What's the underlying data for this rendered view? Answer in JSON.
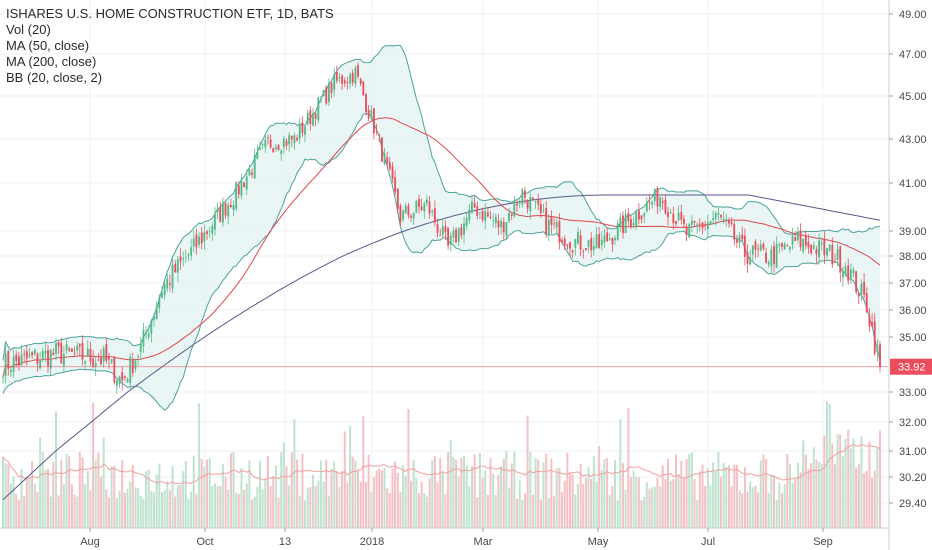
{
  "legend": {
    "title": "ISHARES U.S. HOME CONSTRUCTION ETF, 1D, BATS",
    "vol": "Vol (20)",
    "ma50": "MA (50, close)",
    "ma200": "MA (200, close)",
    "bb": "BB (20, close, 2)"
  },
  "price_label": "33.92",
  "colors": {
    "up": "#53b987",
    "down": "#eb4d5c",
    "ma50": "#e0474c",
    "ma200": "#5a5a8a",
    "bb": "#4ca39a",
    "bb_fill": "#e3f3f1",
    "vol_up": "#bfe3cf",
    "vol_down": "#f6c1c5",
    "vol_ma": "#f0a0a0"
  },
  "chart_data": {
    "type": "candlestick",
    "y_ticks": [
      "49.00",
      "47.00",
      "45.00",
      "43.00",
      "41.00",
      "39.00",
      "38.00",
      "37.00",
      "36.00",
      "35.00",
      "33.00",
      "32.00",
      "31.00",
      "30.20",
      "29.40"
    ],
    "x_ticks": [
      "Aug",
      "Oct",
      "13",
      "2018",
      "Mar",
      "May",
      "Jul",
      "Sep"
    ],
    "last_close": 33.92,
    "close_keypoints": [
      {
        "t": 0,
        "v": 34.0
      },
      {
        "t": 20,
        "v": 34.4
      },
      {
        "t": 38,
        "v": 34.2
      },
      {
        "t": 45,
        "v": 33.4
      },
      {
        "t": 52,
        "v": 34.6
      },
      {
        "t": 60,
        "v": 36.8
      },
      {
        "t": 72,
        "v": 38.3
      },
      {
        "t": 88,
        "v": 40.6
      },
      {
        "t": 100,
        "v": 42.8
      },
      {
        "t": 110,
        "v": 43.0
      },
      {
        "t": 125,
        "v": 45.6
      },
      {
        "t": 133,
        "v": 46.1
      },
      {
        "t": 140,
        "v": 43.6
      },
      {
        "t": 150,
        "v": 39.6
      },
      {
        "t": 160,
        "v": 40.1
      },
      {
        "t": 168,
        "v": 38.3
      },
      {
        "t": 178,
        "v": 40.0
      },
      {
        "t": 188,
        "v": 39.2
      },
      {
        "t": 196,
        "v": 40.6
      },
      {
        "t": 205,
        "v": 39.3
      },
      {
        "t": 215,
        "v": 38.6
      },
      {
        "t": 225,
        "v": 38.4
      },
      {
        "t": 238,
        "v": 39.6
      },
      {
        "t": 248,
        "v": 40.5
      },
      {
        "t": 258,
        "v": 38.9
      },
      {
        "t": 270,
        "v": 39.6
      },
      {
        "t": 280,
        "v": 38.1
      },
      {
        "t": 290,
        "v": 38.0
      },
      {
        "t": 300,
        "v": 38.6
      },
      {
        "t": 312,
        "v": 38.1
      },
      {
        "t": 318,
        "v": 37.7
      },
      {
        "t": 326,
        "v": 36.2
      },
      {
        "t": 331,
        "v": 33.92
      }
    ]
  }
}
